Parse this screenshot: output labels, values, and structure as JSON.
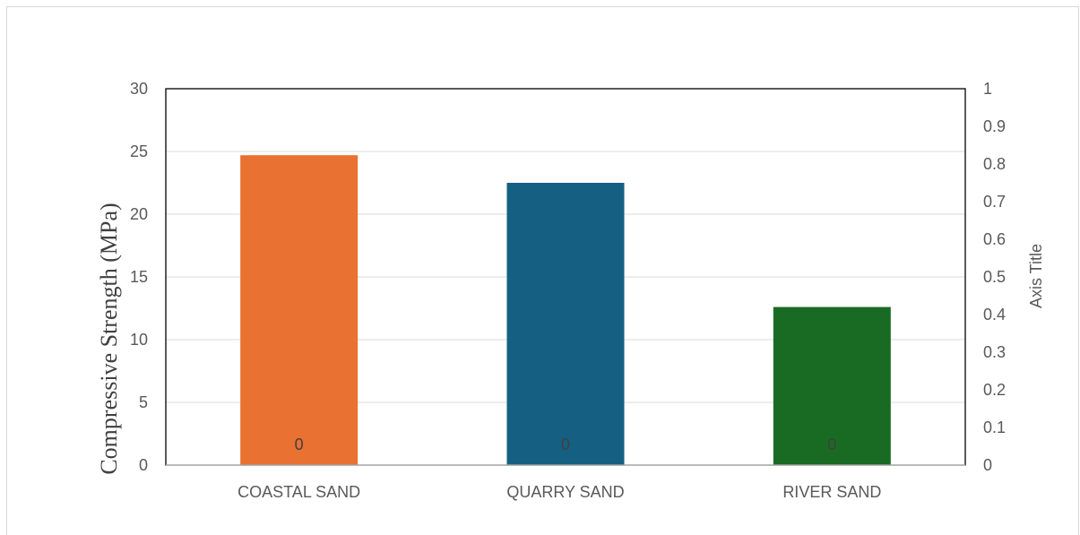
{
  "chart_data": {
    "type": "bar",
    "categories": [
      "COASTAL SAND",
      "QUARRY SAND",
      "RIVER SAND"
    ],
    "values": [
      24.7,
      22.5,
      12.6
    ],
    "colors": [
      "#e97132",
      "#156082",
      "#196b24"
    ],
    "data_labels": [
      "0",
      "0",
      "0"
    ],
    "ylabel": "Compressive Strength (MPa)",
    "ylim": [
      0,
      30
    ],
    "yticks": [
      "0",
      "5",
      "10",
      "15",
      "20",
      "25",
      "30"
    ],
    "y2label": "Axis Title",
    "y2lim": [
      0,
      1
    ],
    "y2ticks": [
      "0",
      "0.1",
      "0.2",
      "0.3",
      "0.4",
      "0.5",
      "0.6",
      "0.7",
      "0.8",
      "0.9",
      "1"
    ],
    "grid": true
  }
}
